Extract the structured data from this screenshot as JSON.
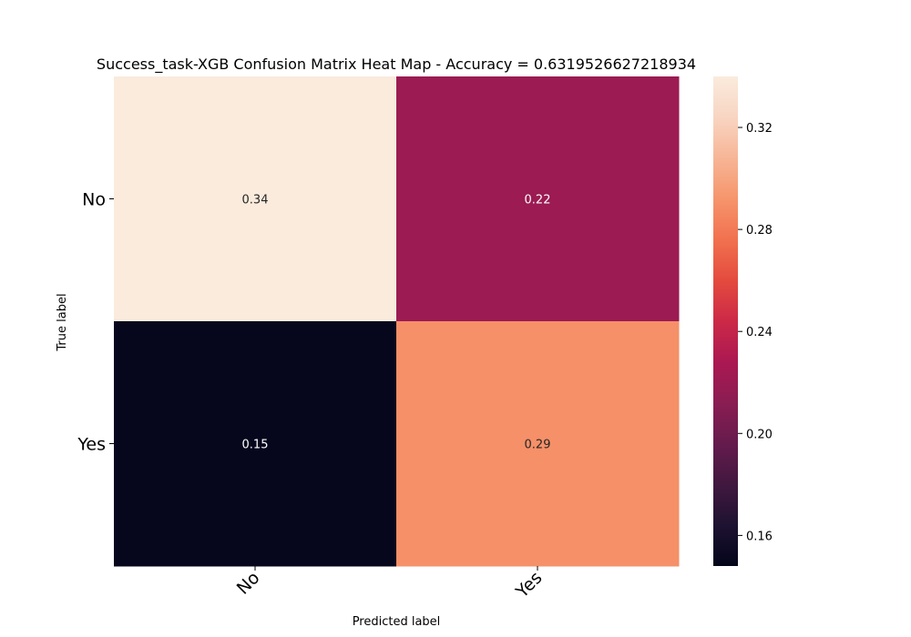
{
  "chart_data": {
    "type": "heatmap",
    "title": "Success_task-XGB Confusion Matrix Heat Map - Accuracy = 0.6319526627218934",
    "xlabel": "Predicted label",
    "ylabel": "True label",
    "x_categories": [
      "No",
      "Yes"
    ],
    "y_categories": [
      "No",
      "Yes"
    ],
    "values": [
      [
        0.34,
        0.22
      ],
      [
        0.15,
        0.29
      ]
    ],
    "cell_labels": [
      [
        "0.34",
        "0.22"
      ],
      [
        "0.15",
        "0.29"
      ]
    ],
    "colorscale": "rocket",
    "colorbar": {
      "range": [
        0.148,
        0.34
      ],
      "ticks": [
        0.16,
        0.2,
        0.24,
        0.28,
        0.32
      ],
      "tick_labels": [
        "0.16",
        "0.20",
        "0.24",
        "0.28",
        "0.32"
      ],
      "colors": [
        "#03051a",
        "#1e1231",
        "#41183f",
        "#651b4d",
        "#8a1d52",
        "#ab1852",
        "#cc2947",
        "#e44b3e",
        "#f1714f",
        "#f6956c",
        "#f7b596",
        "#f8d5c2",
        "#faebdd"
      ]
    },
    "legend": "colorbar-right",
    "grid": false
  }
}
